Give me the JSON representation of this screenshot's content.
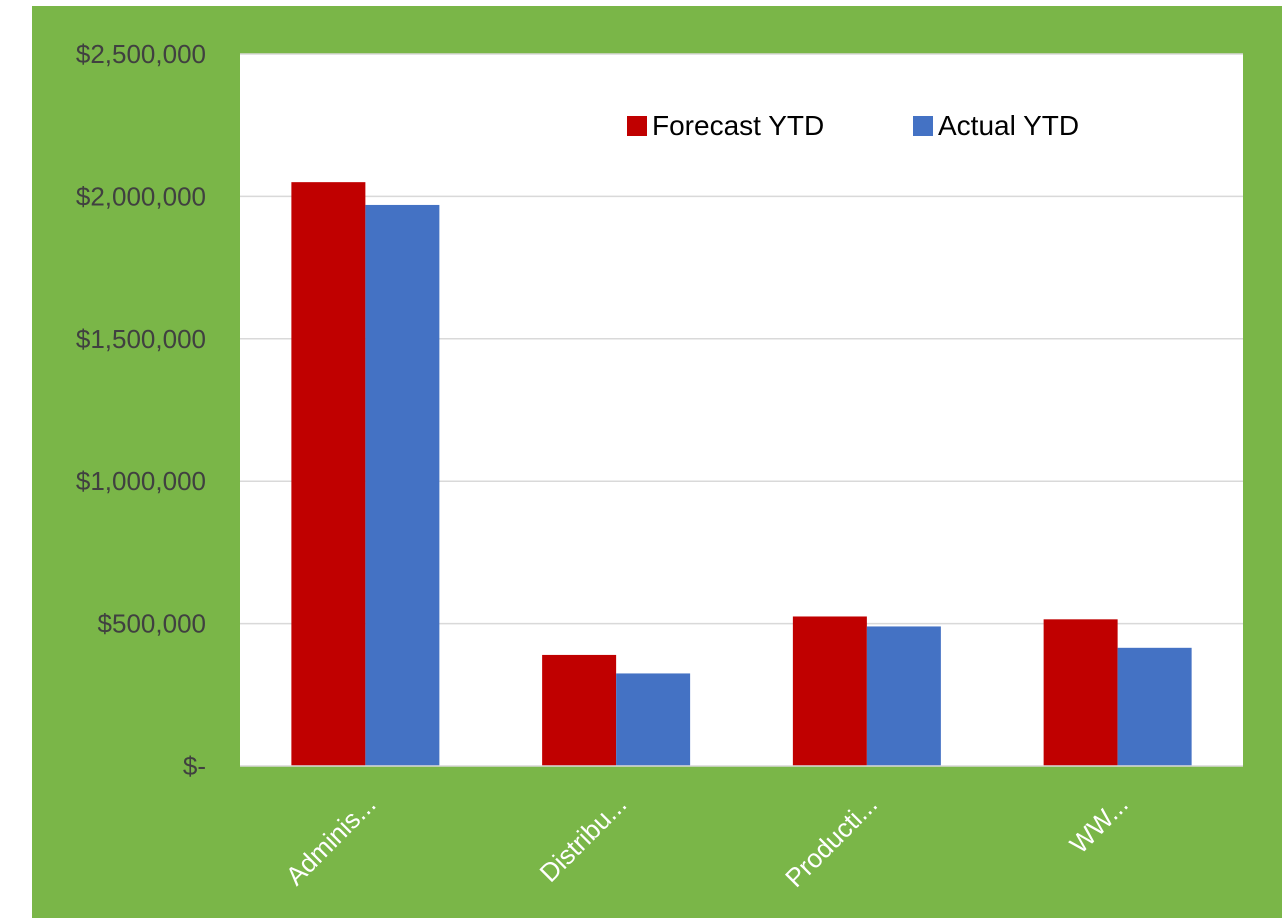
{
  "chart_data": {
    "type": "bar",
    "categories": [
      "Adminis...",
      "Distribu...",
      "Producti...",
      "WW..."
    ],
    "series": [
      {
        "name": "Forecast YTD",
        "color": "#c00000",
        "values": [
          2050000,
          390000,
          525000,
          515000
        ]
      },
      {
        "name": "Actual YTD",
        "color": "#4472c4",
        "values": [
          1970000,
          325000,
          490000,
          415000
        ]
      }
    ],
    "ylim": [
      0,
      2500000
    ],
    "yticks": [
      {
        "value": 0,
        "label": "$-"
      },
      {
        "value": 500000,
        "label": "$500,000"
      },
      {
        "value": 1000000,
        "label": "$1,000,000"
      },
      {
        "value": 1500000,
        "label": "$1,500,000"
      },
      {
        "value": 2000000,
        "label": "$2,000,000"
      },
      {
        "value": 2500000,
        "label": "$2,500,000"
      }
    ],
    "grid": true,
    "legend_position": "top-right",
    "chart_area_color": "#7ab648",
    "plot_area_color": "#ffffff",
    "gridline_color": "#d9d9d9",
    "tick_label_color": "#404040"
  }
}
